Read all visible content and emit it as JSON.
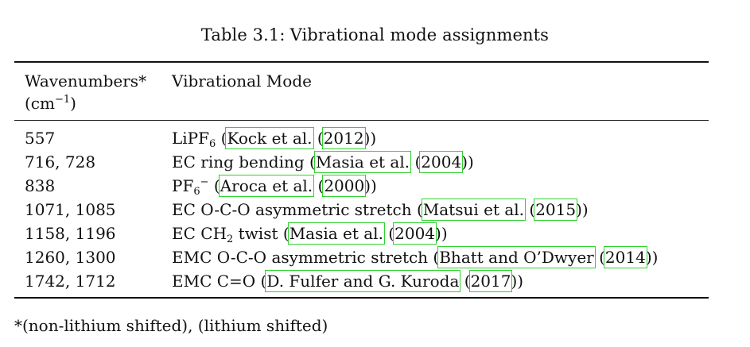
{
  "caption": {
    "label": "Table 3.1:",
    "text": "Vibrational mode assignments"
  },
  "header": {
    "col1_line1": "Wavenumbers*",
    "col1_unit_base": "(cm",
    "col1_unit_exp": "−1",
    "col1_unit_close": ")",
    "col2": "Vibrational Mode"
  },
  "rows": [
    {
      "wavenumbers": "557",
      "mode": "LiPF",
      "mode_sub": "6",
      "open": " (",
      "authors": "Kock et al.",
      "year": "2012",
      "close": "))"
    },
    {
      "wavenumbers": "716, 728",
      "mode": "EC ring bending",
      "open": " (",
      "authors": "Masia et al.",
      "year": "2004",
      "close": "))"
    },
    {
      "wavenumbers": "838",
      "mode": "PF",
      "mode_sub": "6",
      "mode_sup": "−",
      "open": " (",
      "authors": "Aroca et al.",
      "year": "2000",
      "close": "))"
    },
    {
      "wavenumbers": "1071, 1085",
      "mode": "EC O-C-O asymmetric stretch",
      "open": " (",
      "authors": "Matsui et al.",
      "year": "2015",
      "close": "))"
    },
    {
      "wavenumbers": "1158, 1196",
      "mode": "EC CH",
      "mode_sub": "2",
      "mode_after": " twist",
      "open": " (",
      "authors": "Masia et al.",
      "year": "2004",
      "close": "))"
    },
    {
      "wavenumbers": "1260, 1300",
      "mode": "EMC O-C-O asymmetric stretch",
      "open": " (",
      "authors": "Bhatt and O’Dwyer",
      "year": "2014",
      "close": "))"
    },
    {
      "wavenumbers": "1742, 1712",
      "mode": "EMC C=O",
      "open": " (",
      "authors": "D. Fulfer and G. Kuroda",
      "year": "2017",
      "close": "))"
    }
  ],
  "footnote": "*(non-lithium shifted), (lithium shifted)",
  "colors": {
    "citation_box": "#2fd12f",
    "text": "#111111"
  }
}
